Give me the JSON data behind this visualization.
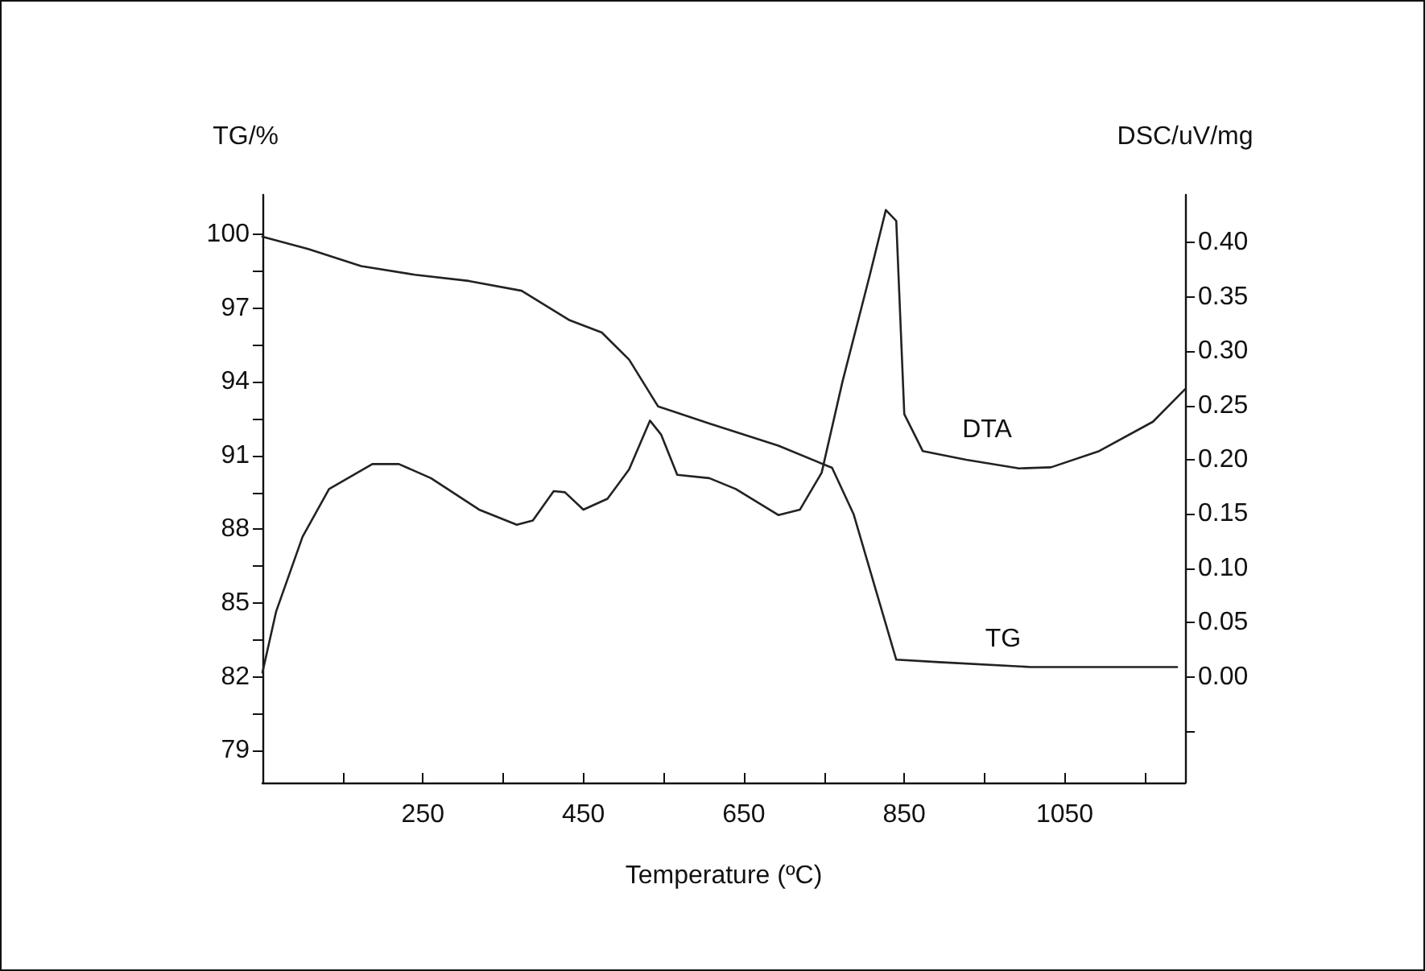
{
  "chart_data": {
    "type": "line",
    "xlabel": "Temperature (ºC)",
    "ylabel": "TG/%",
    "y2label": "DSC/uV/mg",
    "xlim": [
      50,
      1200
    ],
    "xticks": [
      {
        "value": 150,
        "label": null
      },
      250,
      {
        "value": 350,
        "label": null
      },
      450,
      {
        "value": 550,
        "label": null
      },
      650,
      {
        "value": 750,
        "label": null
      },
      850,
      {
        "value": 950,
        "label": null
      },
      1050,
      {
        "value": 1150,
        "label": null
      }
    ],
    "ylim": [
      77.7,
      101.6
    ],
    "yticks": [
      79,
      {
        "value": 80.5,
        "label": null
      },
      82,
      {
        "value": 83.5,
        "label": null
      },
      85,
      {
        "value": 86.5,
        "label": null
      },
      88,
      {
        "value": 89.5,
        "label": null
      },
      91,
      {
        "value": 92.5,
        "label": null
      },
      94,
      {
        "value": 95.5,
        "label": null
      },
      97,
      {
        "value": 98.5,
        "label": null
      },
      100
    ],
    "y2lim": [
      -0.0975,
      0.444
    ],
    "y2ticks": [
      {
        "value": -0.05,
        "label": null
      },
      "0.00",
      0.05,
      "0.10",
      0.15,
      "0.20",
      0.25,
      "0.30",
      0.35,
      "0.40"
    ],
    "grid": false,
    "marker": "none",
    "line_style": "solid",
    "series": [
      {
        "color": "#222222",
        "x": [
          50,
          107,
          173,
          240,
          307,
          373,
          433,
          473,
          507,
          543,
          607,
          693,
          760,
          787,
          813,
          840,
          893,
          1007,
          1190
        ],
        "values": [
          99.9,
          99.4,
          98.7,
          98.35,
          98.1,
          97.7,
          96.5,
          96.0,
          94.9,
          93.0,
          92.3,
          91.4,
          90.5,
          88.6,
          85.7,
          82.7,
          82.6,
          82.4,
          82.4
        ]
      },
      {
        "color": "#222222",
        "axis": "y2",
        "x": [
          50,
          67,
          100,
          133,
          187,
          220,
          260,
          320,
          367,
          387,
          413,
          427,
          450,
          480,
          507,
          533,
          547,
          567,
          607,
          640,
          693,
          720,
          747,
          773,
          807,
          827,
          840,
          850,
          873,
          927,
          993,
          1033,
          1093,
          1160,
          1200
        ],
        "values": [
          0.004,
          0.06,
          0.129,
          0.173,
          0.196,
          0.196,
          0.183,
          0.154,
          0.14,
          0.144,
          0.171,
          0.17,
          0.154,
          0.164,
          0.191,
          0.236,
          0.223,
          0.186,
          0.183,
          0.173,
          0.149,
          0.154,
          0.188,
          0.272,
          0.37,
          0.43,
          0.42,
          0.242,
          0.208,
          0.2,
          0.192,
          0.193,
          0.208,
          0.235,
          0.265
        ]
      }
    ],
    "annotations": [
      "DTA",
      "TG"
    ]
  }
}
